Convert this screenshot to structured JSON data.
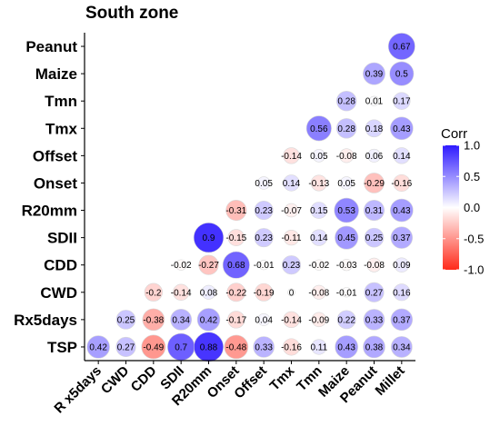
{
  "chart_data": {
    "type": "heatmap",
    "subtype": "correlogram-lower-triangle-circles",
    "title": "South zone",
    "rows_top_to_bottom": [
      "Peanut",
      "Maize",
      "Tmn",
      "Tmx",
      "Offset",
      "Onset",
      "R20mm",
      "SDII",
      "CDD",
      "CWD",
      "Rx5days",
      "TSP"
    ],
    "columns_left_to_right": [
      "R x5days",
      "CWD",
      "CDD",
      "SDII",
      "R20mm",
      "Onset",
      "Offset",
      "Tmx",
      "Tmn",
      "Maize",
      "Peanut",
      "Millet"
    ],
    "column_label_angle_deg": 45,
    "values": [
      {
        "row": "Peanut",
        "col": "Millet",
        "value": 0.67,
        "label": "0.67"
      },
      {
        "row": "Maize",
        "col": "Peanut",
        "value": 0.39,
        "label": "0.39"
      },
      {
        "row": "Maize",
        "col": "Millet",
        "value": 0.5,
        "label": "0.5"
      },
      {
        "row": "Tmn",
        "col": "Maize",
        "value": 0.28,
        "label": "0.28"
      },
      {
        "row": "Tmn",
        "col": "Peanut",
        "value": 0.01,
        "label": "0.01"
      },
      {
        "row": "Tmn",
        "col": "Millet",
        "value": 0.17,
        "label": "0.17"
      },
      {
        "row": "Tmx",
        "col": "Tmn",
        "value": 0.56,
        "label": "0.56"
      },
      {
        "row": "Tmx",
        "col": "Maize",
        "value": 0.28,
        "label": "0.28"
      },
      {
        "row": "Tmx",
        "col": "Peanut",
        "value": 0.18,
        "label": "0.18"
      },
      {
        "row": "Tmx",
        "col": "Millet",
        "value": 0.43,
        "label": "0.43"
      },
      {
        "row": "Offset",
        "col": "Tmx",
        "value": -0.14,
        "label": "-0.14"
      },
      {
        "row": "Offset",
        "col": "Tmn",
        "value": 0.05,
        "label": "0.05"
      },
      {
        "row": "Offset",
        "col": "Maize",
        "value": -0.08,
        "label": "-0.08"
      },
      {
        "row": "Offset",
        "col": "Peanut",
        "value": 0.06,
        "label": "0.06"
      },
      {
        "row": "Offset",
        "col": "Millet",
        "value": 0.14,
        "label": "0.14"
      },
      {
        "row": "Onset",
        "col": "Offset",
        "value": 0.05,
        "label": "0.05"
      },
      {
        "row": "Onset",
        "col": "Tmx",
        "value": 0.14,
        "label": "0.14"
      },
      {
        "row": "Onset",
        "col": "Tmn",
        "value": -0.13,
        "label": "-0.13"
      },
      {
        "row": "Onset",
        "col": "Maize",
        "value": 0.05,
        "label": "0.05"
      },
      {
        "row": "Onset",
        "col": "Peanut",
        "value": -0.29,
        "label": "-0.29"
      },
      {
        "row": "Onset",
        "col": "Millet",
        "value": -0.16,
        "label": "-0.16"
      },
      {
        "row": "R20mm",
        "col": "Onset",
        "value": -0.31,
        "label": "-0.31"
      },
      {
        "row": "R20mm",
        "col": "Offset",
        "value": 0.23,
        "label": "0.23"
      },
      {
        "row": "R20mm",
        "col": "Tmx",
        "value": -0.07,
        "label": "-0.07"
      },
      {
        "row": "R20mm",
        "col": "Tmn",
        "value": 0.15,
        "label": "0.15"
      },
      {
        "row": "R20mm",
        "col": "Maize",
        "value": 0.53,
        "label": "0.53"
      },
      {
        "row": "R20mm",
        "col": "Peanut",
        "value": 0.31,
        "label": "0.31"
      },
      {
        "row": "R20mm",
        "col": "Millet",
        "value": 0.43,
        "label": "0.43"
      },
      {
        "row": "SDII",
        "col": "R20mm",
        "value": 0.9,
        "label": "0.9"
      },
      {
        "row": "SDII",
        "col": "Onset",
        "value": -0.15,
        "label": "-0.15"
      },
      {
        "row": "SDII",
        "col": "Offset",
        "value": 0.23,
        "label": "0.23"
      },
      {
        "row": "SDII",
        "col": "Tmx",
        "value": -0.11,
        "label": "-0.11"
      },
      {
        "row": "SDII",
        "col": "Tmn",
        "value": 0.14,
        "label": "0.14"
      },
      {
        "row": "SDII",
        "col": "Maize",
        "value": 0.45,
        "label": "0.45"
      },
      {
        "row": "SDII",
        "col": "Peanut",
        "value": 0.25,
        "label": "0.25"
      },
      {
        "row": "SDII",
        "col": "Millet",
        "value": 0.37,
        "label": "0.37"
      },
      {
        "row": "CDD",
        "col": "SDII",
        "value": -0.02,
        "label": "-0.02"
      },
      {
        "row": "CDD",
        "col": "R20mm",
        "value": -0.27,
        "label": "-0.27"
      },
      {
        "row": "CDD",
        "col": "Onset",
        "value": 0.68,
        "label": "0.68"
      },
      {
        "row": "CDD",
        "col": "Offset",
        "value": -0.01,
        "label": "-0.01"
      },
      {
        "row": "CDD",
        "col": "Tmx",
        "value": 0.23,
        "label": "0.23"
      },
      {
        "row": "CDD",
        "col": "Tmn",
        "value": -0.02,
        "label": "-0.02"
      },
      {
        "row": "CDD",
        "col": "Maize",
        "value": -0.03,
        "label": "-0.03"
      },
      {
        "row": "CDD",
        "col": "Peanut",
        "value": -0.08,
        "label": "-0.08"
      },
      {
        "row": "CDD",
        "col": "Millet",
        "value": 0.09,
        "label": "0.09"
      },
      {
        "row": "CWD",
        "col": "CDD",
        "value": -0.2,
        "label": "-0.2"
      },
      {
        "row": "CWD",
        "col": "SDII",
        "value": -0.14,
        "label": "-0.14"
      },
      {
        "row": "CWD",
        "col": "R20mm",
        "value": 0.08,
        "label": "0.08"
      },
      {
        "row": "CWD",
        "col": "Onset",
        "value": -0.22,
        "label": "-0.22"
      },
      {
        "row": "CWD",
        "col": "Offset",
        "value": -0.19,
        "label": "-0.19"
      },
      {
        "row": "CWD",
        "col": "Tmx",
        "value": 0,
        "label": "0"
      },
      {
        "row": "CWD",
        "col": "Tmn",
        "value": -0.08,
        "label": "-0.08"
      },
      {
        "row": "CWD",
        "col": "Maize",
        "value": -0.01,
        "label": "-0.01"
      },
      {
        "row": "CWD",
        "col": "Peanut",
        "value": 0.27,
        "label": "0.27"
      },
      {
        "row": "CWD",
        "col": "Millet",
        "value": 0.16,
        "label": "0.16"
      },
      {
        "row": "Rx5days",
        "col": "CWD",
        "value": 0.25,
        "label": "0.25"
      },
      {
        "row": "Rx5days",
        "col": "CDD",
        "value": -0.38,
        "label": "-0.38"
      },
      {
        "row": "Rx5days",
        "col": "SDII",
        "value": 0.34,
        "label": "0.34"
      },
      {
        "row": "Rx5days",
        "col": "R20mm",
        "value": 0.42,
        "label": "0.42"
      },
      {
        "row": "Rx5days",
        "col": "Onset",
        "value": -0.17,
        "label": "-0.17"
      },
      {
        "row": "Rx5days",
        "col": "Offset",
        "value": 0.04,
        "label": "0.04"
      },
      {
        "row": "Rx5days",
        "col": "Tmx",
        "value": -0.14,
        "label": "-0.14"
      },
      {
        "row": "Rx5days",
        "col": "Tmn",
        "value": -0.09,
        "label": "-0.09"
      },
      {
        "row": "Rx5days",
        "col": "Maize",
        "value": 0.22,
        "label": "0.22"
      },
      {
        "row": "Rx5days",
        "col": "Peanut",
        "value": 0.33,
        "label": "0.33"
      },
      {
        "row": "Rx5days",
        "col": "Millet",
        "value": 0.37,
        "label": "0.37"
      },
      {
        "row": "TSP",
        "col": "R x5days",
        "value": 0.42,
        "label": "0.42"
      },
      {
        "row": "TSP",
        "col": "CWD",
        "value": 0.27,
        "label": "0.27"
      },
      {
        "row": "TSP",
        "col": "CDD",
        "value": -0.49,
        "label": "-0.49"
      },
      {
        "row": "TSP",
        "col": "SDII",
        "value": 0.7,
        "label": "0.7"
      },
      {
        "row": "TSP",
        "col": "R20mm",
        "value": 0.88,
        "label": "0.88"
      },
      {
        "row": "TSP",
        "col": "Onset",
        "value": -0.48,
        "label": "-0.48"
      },
      {
        "row": "TSP",
        "col": "Offset",
        "value": 0.33,
        "label": "0.33"
      },
      {
        "row": "TSP",
        "col": "Tmx",
        "value": -0.16,
        "label": "-0.16"
      },
      {
        "row": "TSP",
        "col": "Tmn",
        "value": 0.11,
        "label": "0.11"
      },
      {
        "row": "TSP",
        "col": "Maize",
        "value": 0.43,
        "label": "0.43"
      },
      {
        "row": "TSP",
        "col": "Peanut",
        "value": 0.38,
        "label": "0.38"
      },
      {
        "row": "TSP",
        "col": "Millet",
        "value": 0.34,
        "label": "0.34"
      }
    ],
    "legend": {
      "title": "Corr",
      "range": [
        -1,
        1
      ],
      "ticks": [
        1.0,
        0.5,
        0.0,
        -0.5,
        -1.0
      ],
      "tick_labels": [
        "1.0",
        "0.5",
        "0.0",
        "-0.5",
        "-1.0"
      ],
      "colors": {
        "low": "#FF2A1A",
        "mid": "#FFFFFF",
        "high": "#2E1AFF"
      },
      "placement": "right"
    },
    "grid": false,
    "axis_lines": "left-and-bottom"
  }
}
